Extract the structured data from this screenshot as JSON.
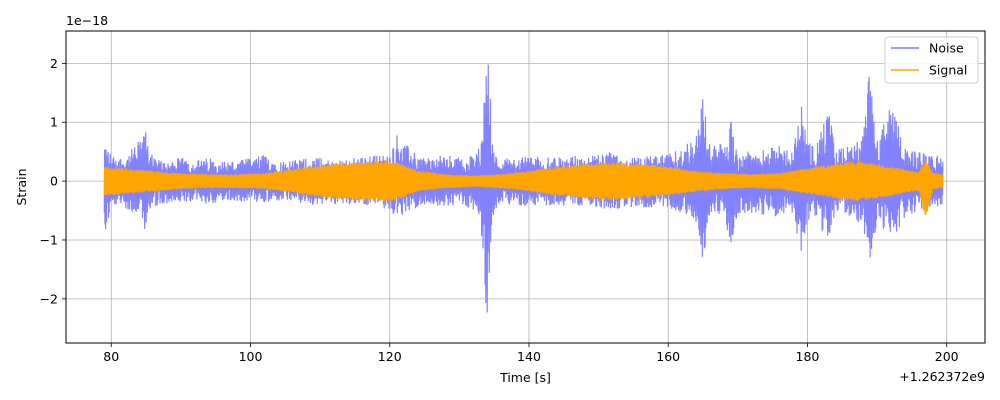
{
  "chart_data": {
    "type": "line",
    "title": "",
    "xlabel": "Time [s]",
    "ylabel": "Strain",
    "x_offset_label": "+1.262372e9",
    "y_scale_label": "1e−18",
    "xlim": [
      73.5,
      205.5
    ],
    "ylim": [
      -2.75,
      2.55
    ],
    "x_ticks": [
      80,
      100,
      120,
      140,
      160,
      180,
      200
    ],
    "x_tick_labels": [
      "80",
      "100",
      "120",
      "140",
      "160",
      "180",
      "200"
    ],
    "y_ticks": [
      -2,
      -1,
      0,
      1,
      2
    ],
    "y_tick_labels": [
      "−2",
      "−1",
      "0",
      "1",
      "2"
    ],
    "grid": true,
    "legend_position": "top-right",
    "series": [
      {
        "name": "Noise",
        "color": "#7b7bff",
        "envelope_x": [
          79,
          80,
          82,
          84,
          85,
          86,
          88,
          90,
          92,
          94,
          96,
          98,
          100,
          102,
          104,
          106,
          108,
          110,
          112,
          114,
          116,
          118,
          120,
          121,
          122,
          124,
          126,
          128,
          130,
          132,
          133,
          134,
          135,
          136,
          138,
          140,
          142,
          144,
          146,
          148,
          150,
          152,
          154,
          156,
          158,
          160,
          162,
          164,
          165,
          166,
          168,
          169,
          170,
          172,
          174,
          176,
          178,
          179,
          180,
          181,
          182,
          183,
          184,
          186,
          188,
          189,
          190,
          192,
          194,
          196,
          198,
          199.5
        ],
        "envelope_upper": [
          0.72,
          0.45,
          0.4,
          0.7,
          0.85,
          0.4,
          0.35,
          0.4,
          0.35,
          0.4,
          0.35,
          0.35,
          0.4,
          0.45,
          0.35,
          0.35,
          0.4,
          0.4,
          0.35,
          0.4,
          0.4,
          0.45,
          0.45,
          0.82,
          0.65,
          0.45,
          0.4,
          0.45,
          0.4,
          0.45,
          0.6,
          2.32,
          0.45,
          0.4,
          0.4,
          0.45,
          0.4,
          0.4,
          0.45,
          0.4,
          0.45,
          0.5,
          0.4,
          0.4,
          0.45,
          0.45,
          0.6,
          0.8,
          1.45,
          0.6,
          0.65,
          1.05,
          0.5,
          0.5,
          0.55,
          0.6,
          0.5,
          1.45,
          0.7,
          0.6,
          0.85,
          1.3,
          0.55,
          0.6,
          0.8,
          2.0,
          0.7,
          1.3,
          0.6,
          0.5,
          0.45,
          0.45
        ],
        "envelope_lower": [
          -0.98,
          -0.5,
          -0.45,
          -0.7,
          -0.85,
          -0.45,
          -0.4,
          -0.4,
          -0.35,
          -0.4,
          -0.35,
          -0.35,
          -0.35,
          -0.4,
          -0.35,
          -0.35,
          -0.4,
          -0.4,
          -0.4,
          -0.4,
          -0.4,
          -0.45,
          -0.5,
          -0.7,
          -0.55,
          -0.45,
          -0.4,
          -0.45,
          -0.4,
          -0.5,
          -0.6,
          -2.5,
          -0.5,
          -0.4,
          -0.4,
          -0.45,
          -0.4,
          -0.45,
          -0.45,
          -0.4,
          -0.45,
          -0.5,
          -0.45,
          -0.45,
          -0.45,
          -0.45,
          -0.55,
          -0.7,
          -1.4,
          -0.55,
          -0.6,
          -1.1,
          -0.55,
          -0.55,
          -0.6,
          -0.6,
          -0.55,
          -1.3,
          -0.7,
          -0.6,
          -0.85,
          -1.0,
          -0.55,
          -0.6,
          -0.75,
          -1.65,
          -0.7,
          -1.05,
          -0.6,
          -0.5,
          -0.45,
          -0.4
        ]
      },
      {
        "name": "Signal",
        "color": "#ffa500",
        "envelope_x": [
          79,
          82,
          86,
          90,
          94,
          98,
          102,
          106,
          110,
          114,
          118,
          120,
          122,
          124,
          128,
          132,
          136,
          140,
          144,
          148,
          152,
          156,
          160,
          164,
          168,
          172,
          176,
          180,
          184,
          186,
          188,
          190,
          192,
          194,
          196,
          197,
          198,
          199.5
        ],
        "envelope_upper": [
          0.25,
          0.22,
          0.18,
          0.14,
          0.12,
          0.12,
          0.14,
          0.2,
          0.28,
          0.32,
          0.34,
          0.35,
          0.28,
          0.18,
          0.12,
          0.1,
          0.12,
          0.18,
          0.25,
          0.3,
          0.32,
          0.3,
          0.25,
          0.18,
          0.14,
          0.12,
          0.14,
          0.22,
          0.3,
          0.34,
          0.33,
          0.3,
          0.25,
          0.2,
          0.16,
          0.38,
          0.15,
          0.12
        ],
        "envelope_lower": [
          -0.25,
          -0.22,
          -0.18,
          -0.14,
          -0.12,
          -0.12,
          -0.14,
          -0.2,
          -0.28,
          -0.32,
          -0.34,
          -0.35,
          -0.28,
          -0.18,
          -0.12,
          -0.1,
          -0.12,
          -0.18,
          -0.25,
          -0.3,
          -0.32,
          -0.3,
          -0.25,
          -0.18,
          -0.14,
          -0.12,
          -0.14,
          -0.22,
          -0.3,
          -0.34,
          -0.33,
          -0.3,
          -0.25,
          -0.2,
          -0.16,
          -0.65,
          -0.15,
          -0.12
        ]
      }
    ]
  }
}
